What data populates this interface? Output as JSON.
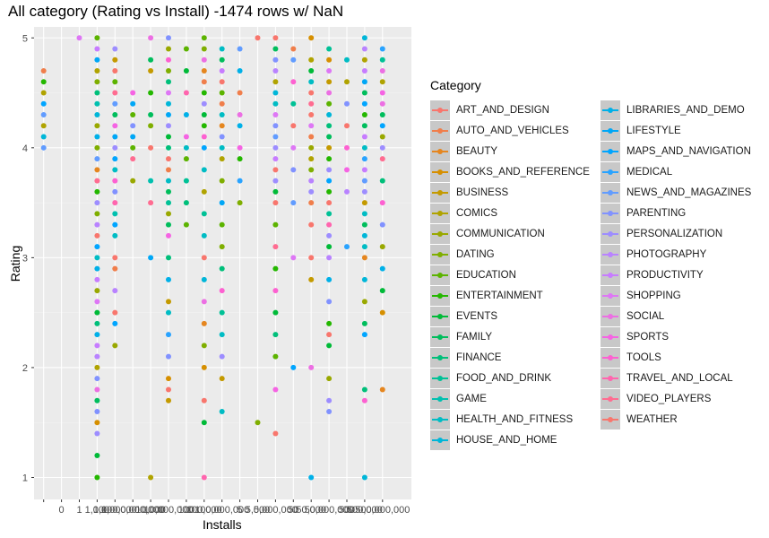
{
  "chart_data": {
    "type": "scatter",
    "title": "All category (Rating vs Install) -1474 rows w/ NaN",
    "xlabel": "Installs",
    "ylabel": "Rating",
    "x_categories": [
      "",
      "0",
      "1",
      "1,000",
      "1,000,000",
      "1,000,000,000",
      "10,000",
      "10,000,000",
      "100",
      "100,000",
      "100,000,000",
      "5",
      "5,000",
      "5,000,000",
      "50",
      "50,000",
      "50,000,000",
      "500",
      "500,000",
      "500,000,000"
    ],
    "yticks": [
      1,
      2,
      3,
      4,
      5
    ],
    "ylim": [
      0.8,
      5.1
    ],
    "grid": true,
    "legend_title": "Category",
    "legend_position": "right",
    "categories": [
      "ART_AND_DESIGN",
      "AUTO_AND_VEHICLES",
      "BEAUTY",
      "BOOKS_AND_REFERENCE",
      "BUSINESS",
      "COMICS",
      "COMMUNICATION",
      "DATING",
      "EDUCATION",
      "ENTERTAINMENT",
      "EVENTS",
      "FAMILY",
      "FINANCE",
      "FOOD_AND_DRINK",
      "GAME",
      "HEALTH_AND_FITNESS",
      "HOUSE_AND_HOME",
      "LIBRARIES_AND_DEMO",
      "LIFESTYLE",
      "MAPS_AND_NAVIGATION",
      "MEDICAL",
      "NEWS_AND_MAGAZINES",
      "PARENTING",
      "PERSONALIZATION",
      "PHOTOGRAPHY",
      "PRODUCTIVITY",
      "SHOPPING",
      "SOCIAL",
      "SPORTS",
      "TOOLS",
      "TRAVEL_AND_LOCAL",
      "VIDEO_PLAYERS",
      "WEATHER"
    ],
    "colors": [
      "#F8766D",
      "#F07E4B",
      "#E5861F",
      "#D68F00",
      "#C49A00",
      "#B0A300",
      "#99A800",
      "#7FAE00",
      "#5CB300",
      "#24B700",
      "#00BA38",
      "#00BD5C",
      "#00BF7A",
      "#00C196",
      "#00C0AF",
      "#00BCC4",
      "#00B6D8",
      "#00B0E8",
      "#00A7F6",
      "#00A5FF",
      "#29A3FF",
      "#619CFF",
      "#8192FF",
      "#9D8DFF",
      "#B983FF",
      "#C77CFF",
      "#DE77F5",
      "#EC6FE3",
      "#F564E3",
      "#FD61D1",
      "#FF65AE",
      "#FF6C91",
      "#F8766D"
    ],
    "columns": [
      {
        "x": "1",
        "ratings": [
          5.0
        ]
      },
      {
        "x": "1,000",
        "ratings": [
          1.0,
          1.2,
          1.4,
          1.5,
          1.6,
          1.7,
          1.8,
          1.9,
          2.0,
          2.1,
          2.2,
          2.3,
          2.4,
          2.5,
          2.6,
          2.7,
          2.8,
          2.9,
          3.0,
          3.1,
          3.2,
          3.3,
          3.4,
          3.5,
          3.6,
          3.7,
          3.8,
          3.9,
          4.0,
          4.1,
          4.2,
          4.3,
          4.4,
          4.5,
          4.6,
          4.7,
          4.8,
          4.9,
          5.0
        ]
      },
      {
        "x": "1,000,000",
        "ratings": [
          2.2,
          2.4,
          2.5,
          2.7,
          2.9,
          3.0,
          3.2,
          3.3,
          3.4,
          3.5,
          3.6,
          3.7,
          3.8,
          3.9,
          4.0,
          4.1,
          4.2,
          4.3,
          4.4,
          4.5,
          4.6,
          4.7,
          4.8,
          4.9
        ]
      },
      {
        "x": "1,000,000,000",
        "ratings": [
          3.7,
          3.9,
          4.0,
          4.1,
          4.2,
          4.3,
          4.4,
          4.5
        ]
      },
      {
        "x": "10,000",
        "ratings": [
          1.0,
          3.0,
          3.5,
          3.7,
          4.0,
          4.2,
          4.3,
          4.5,
          4.7,
          4.8,
          5.0
        ]
      },
      {
        "x": "10,000,000",
        "ratings": [
          1.7,
          1.8,
          1.9,
          2.1,
          2.3,
          2.5,
          2.6,
          2.8,
          3.0,
          3.2,
          3.3,
          3.4,
          3.5,
          3.6,
          3.7,
          3.8,
          3.9,
          4.0,
          4.1,
          4.2,
          4.3,
          4.4,
          4.5,
          4.6,
          4.7,
          4.8,
          4.9,
          5.0
        ]
      },
      {
        "x": "100",
        "ratings": [
          3.3,
          3.5,
          3.7,
          3.9,
          4.0,
          4.1,
          4.3,
          4.5,
          4.7,
          4.9
        ]
      },
      {
        "x": "100,000",
        "ratings": [
          1.0,
          1.5,
          1.7,
          2.0,
          2.2,
          2.4,
          2.6,
          2.8,
          3.0,
          3.2,
          3.4,
          3.6,
          3.8,
          4.0,
          4.1,
          4.2,
          4.3,
          4.4,
          4.5,
          4.6,
          4.7,
          4.8,
          4.9,
          5.0
        ]
      },
      {
        "x": "100,000,000",
        "ratings": [
          1.6,
          1.9,
          2.1,
          2.3,
          2.5,
          2.7,
          2.9,
          3.1,
          3.3,
          3.5,
          3.7,
          3.9,
          4.0,
          4.1,
          4.2,
          4.3,
          4.4,
          4.5,
          4.6,
          4.7,
          4.8,
          4.9
        ]
      },
      {
        "x": "5",
        "ratings": [
          3.5,
          3.7,
          3.9,
          4.0,
          4.2,
          4.3,
          4.5,
          4.7,
          4.9
        ]
      },
      {
        "x": "5,000",
        "ratings": [
          1.5,
          5.0
        ]
      },
      {
        "x": "5,000,000",
        "ratings": [
          1.4,
          1.8,
          2.1,
          2.3,
          2.5,
          2.7,
          2.9,
          3.1,
          3.3,
          3.5,
          3.6,
          3.7,
          3.8,
          3.9,
          4.0,
          4.1,
          4.2,
          4.3,
          4.4,
          4.5,
          4.6,
          4.7,
          4.8,
          4.9,
          5.0
        ]
      },
      {
        "x": "50",
        "ratings": [
          2.0,
          3.0,
          3.5,
          3.8,
          4.0,
          4.2,
          4.4,
          4.6,
          4.8,
          4.9
        ]
      },
      {
        "x": "50,000",
        "ratings": [
          1.0,
          2.0,
          2.8,
          3.0,
          3.3,
          3.5,
          3.6,
          3.7,
          3.8,
          3.9,
          4.0,
          4.1,
          4.2,
          4.3,
          4.4,
          4.5,
          4.6,
          4.7,
          4.8,
          5.0
        ]
      },
      {
        "x": "50,000,000",
        "ratings": [
          1.6,
          1.7,
          1.9,
          2.2,
          2.3,
          2.4,
          2.6,
          2.8,
          3.0,
          3.1,
          3.2,
          3.3,
          3.4,
          3.5,
          3.6,
          3.7,
          3.8,
          3.9,
          4.0,
          4.1,
          4.2,
          4.3,
          4.4,
          4.5,
          4.6,
          4.7,
          4.8,
          4.9
        ]
      },
      {
        "x": "500",
        "ratings": [
          3.1,
          3.6,
          3.8,
          4.0,
          4.2,
          4.4,
          4.6,
          4.8
        ]
      },
      {
        "x": "500,000",
        "ratings": [
          1.0,
          1.7,
          1.8,
          2.3,
          2.4,
          2.6,
          2.8,
          3.0,
          3.1,
          3.2,
          3.3,
          3.4,
          3.5,
          3.6,
          3.7,
          3.8,
          3.9,
          4.0,
          4.1,
          4.2,
          4.3,
          4.4,
          4.5,
          4.6,
          4.7,
          4.8,
          4.9,
          5.0
        ]
      },
      {
        "x": "500,000,000",
        "ratings": [
          1.8,
          2.5,
          2.7,
          2.9,
          3.1,
          3.3,
          3.5,
          3.7,
          3.9,
          4.0,
          4.1,
          4.2,
          4.3,
          4.4,
          4.5,
          4.6,
          4.7,
          4.8,
          4.9
        ]
      },
      {
        "x": "",
        "ratings": [
          4.0,
          4.1,
          4.2,
          4.3,
          4.4,
          4.5,
          4.6,
          4.7
        ]
      }
    ]
  }
}
